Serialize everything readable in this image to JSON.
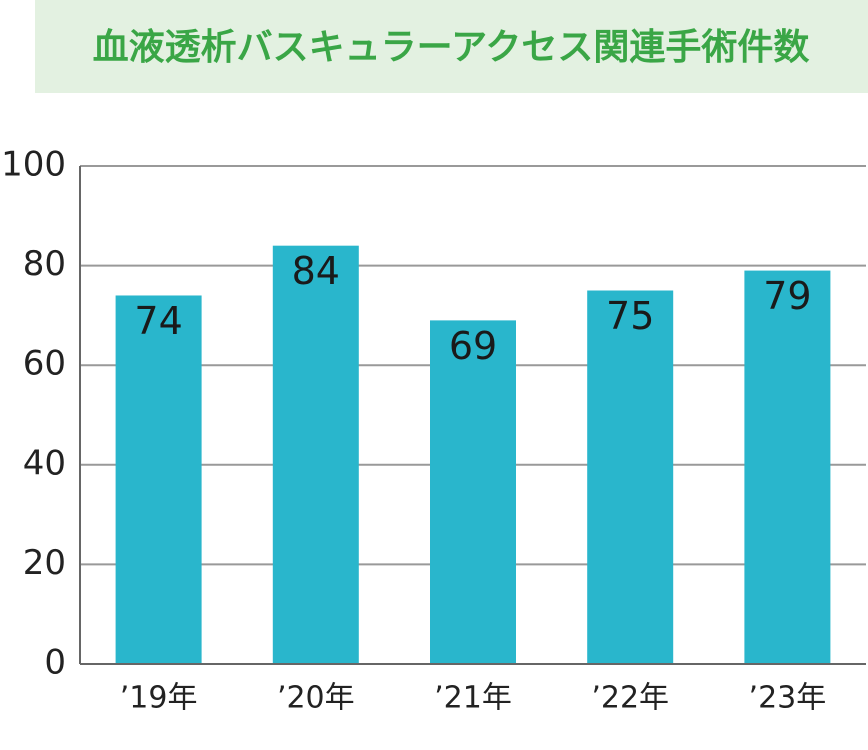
{
  "chart_data": {
    "type": "bar",
    "title": "血液透析バスキュラーアクセス関連手術件数",
    "categories": [
      "’19年",
      "’20年",
      "’21年",
      "’22年",
      "’23年"
    ],
    "values": [
      74,
      84,
      69,
      75,
      79
    ],
    "color": "#29b6cc",
    "ylim": [
      0,
      100
    ],
    "yticks": [
      0,
      20,
      40,
      60,
      80,
      100
    ],
    "grid": true
  }
}
